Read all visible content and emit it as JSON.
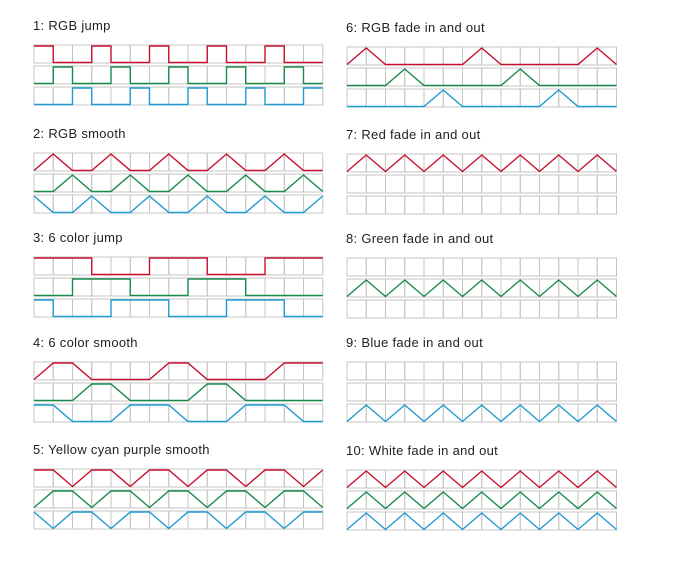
{
  "colors": {
    "red": "#c8102e",
    "green": "#198a4a",
    "blue": "#1f9bd1",
    "grid": "#c4c4c4"
  },
  "modes": [
    {
      "title": "1: RGB jump",
      "cells": 15,
      "rows": [
        {
          "color": "red",
          "shape": "square",
          "levels": [
            1,
            0,
            0,
            1,
            0,
            0,
            1,
            0,
            0,
            1,
            0,
            0,
            1,
            0,
            0
          ]
        },
        {
          "color": "green",
          "shape": "square",
          "levels": [
            0,
            1,
            0,
            0,
            1,
            0,
            0,
            1,
            0,
            0,
            1,
            0,
            0,
            1,
            0
          ]
        },
        {
          "color": "blue",
          "shape": "square",
          "levels": [
            0,
            0,
            1,
            0,
            0,
            1,
            0,
            0,
            1,
            0,
            0,
            1,
            0,
            0,
            1
          ]
        }
      ]
    },
    {
      "title": "2: RGB smooth",
      "cells": 15,
      "rows": [
        {
          "color": "red",
          "shape": "linear",
          "levels": [
            0,
            1,
            0,
            0,
            1,
            0,
            0,
            1,
            0,
            0,
            1,
            0,
            0,
            1,
            0,
            0
          ]
        },
        {
          "color": "green",
          "shape": "linear",
          "levels": [
            0,
            0,
            1,
            0,
            0,
            1,
            0,
            0,
            1,
            0,
            0,
            1,
            0,
            0,
            1,
            0
          ]
        },
        {
          "color": "blue",
          "shape": "linear",
          "levels": [
            1,
            0,
            0,
            1,
            0,
            0,
            1,
            0,
            0,
            1,
            0,
            0,
            1,
            0,
            0,
            1
          ]
        }
      ]
    },
    {
      "title": "3: 6 color jump",
      "cells": 15,
      "rows": [
        {
          "color": "red",
          "shape": "square",
          "levels": [
            1,
            1,
            1,
            0,
            0,
            0,
            1,
            1,
            1,
            0,
            0,
            0,
            1,
            1,
            1
          ]
        },
        {
          "color": "green",
          "shape": "square",
          "levels": [
            0,
            0,
            1,
            1,
            1,
            0,
            0,
            0,
            1,
            1,
            1,
            0,
            0,
            0,
            0
          ]
        },
        {
          "color": "blue",
          "shape": "square",
          "levels": [
            1,
            0,
            0,
            0,
            1,
            1,
            1,
            0,
            0,
            0,
            1,
            1,
            1,
            0,
            0
          ]
        }
      ]
    },
    {
      "title": "4: 6 color smooth",
      "cells": 15,
      "rows": [
        {
          "color": "red",
          "shape": "linear",
          "levels": [
            0,
            1,
            1,
            0,
            0,
            0,
            0,
            1,
            1,
            0,
            0,
            0,
            0,
            1,
            1,
            1
          ]
        },
        {
          "color": "green",
          "shape": "linear",
          "levels": [
            0,
            0,
            0,
            1,
            1,
            0,
            0,
            0,
            0,
            1,
            1,
            0,
            0,
            0,
            0,
            0
          ]
        },
        {
          "color": "blue",
          "shape": "linear",
          "levels": [
            1,
            1,
            0,
            0,
            0,
            1,
            1,
            1,
            0,
            0,
            0,
            1,
            1,
            1,
            0,
            0
          ]
        }
      ]
    },
    {
      "title": "5: Yellow cyan purple smooth",
      "cells": 15,
      "rows": [
        {
          "color": "red",
          "shape": "linear",
          "levels": [
            1,
            1,
            0,
            1,
            1,
            0,
            1,
            1,
            0,
            1,
            1,
            0,
            1,
            1,
            0,
            1
          ]
        },
        {
          "color": "green",
          "shape": "linear",
          "levels": [
            0,
            1,
            1,
            0,
            1,
            1,
            0,
            1,
            1,
            0,
            1,
            1,
            0,
            1,
            1,
            0
          ]
        },
        {
          "color": "blue",
          "shape": "linear",
          "levels": [
            1,
            0,
            1,
            1,
            0,
            1,
            1,
            0,
            1,
            1,
            0,
            1,
            1,
            0,
            1,
            1
          ]
        }
      ]
    },
    {
      "title": "6: RGB fade in and out",
      "cells": 14,
      "rows": [
        {
          "color": "red",
          "shape": "linear",
          "levels": [
            0,
            1,
            0,
            0,
            0,
            0,
            0,
            1,
            0,
            0,
            0,
            0,
            0,
            1,
            0
          ]
        },
        {
          "color": "green",
          "shape": "linear",
          "levels": [
            0,
            0,
            0,
            1,
            0,
            0,
            0,
            0,
            0,
            1,
            0,
            0,
            0,
            0,
            0
          ]
        },
        {
          "color": "blue",
          "shape": "linear",
          "levels": [
            0,
            0,
            0,
            0,
            0,
            1,
            0,
            0,
            0,
            0,
            0,
            1,
            0,
            0,
            0
          ]
        }
      ]
    },
    {
      "title": "7: Red fade in and out",
      "cells": 14,
      "rows": [
        {
          "color": "red",
          "shape": "linear",
          "levels": [
            0,
            1,
            0,
            1,
            0,
            1,
            0,
            1,
            0,
            1,
            0,
            1,
            0,
            1,
            0
          ]
        },
        {
          "color": "green",
          "shape": "none",
          "levels": []
        },
        {
          "color": "blue",
          "shape": "none",
          "levels": []
        }
      ]
    },
    {
      "title": "8: Green fade in and out",
      "cells": 14,
      "rows": [
        {
          "color": "red",
          "shape": "none",
          "levels": []
        },
        {
          "color": "green",
          "shape": "linear",
          "levels": [
            0,
            1,
            0,
            1,
            0,
            1,
            0,
            1,
            0,
            1,
            0,
            1,
            0,
            1,
            0
          ]
        },
        {
          "color": "blue",
          "shape": "none",
          "levels": []
        }
      ]
    },
    {
      "title": "9: Blue fade in and out",
      "cells": 14,
      "rows": [
        {
          "color": "red",
          "shape": "none",
          "levels": []
        },
        {
          "color": "green",
          "shape": "none",
          "levels": []
        },
        {
          "color": "blue",
          "shape": "linear",
          "levels": [
            0,
            1,
            0,
            1,
            0,
            1,
            0,
            1,
            0,
            1,
            0,
            1,
            0,
            1,
            0
          ]
        }
      ]
    },
    {
      "title": "10: White fade in and out",
      "cells": 14,
      "rows": [
        {
          "color": "red",
          "shape": "linear",
          "levels": [
            0,
            1,
            0,
            1,
            0,
            1,
            0,
            1,
            0,
            1,
            0,
            1,
            0,
            1,
            0
          ]
        },
        {
          "color": "green",
          "shape": "linear",
          "levels": [
            0,
            1,
            0,
            1,
            0,
            1,
            0,
            1,
            0,
            1,
            0,
            1,
            0,
            1,
            0
          ]
        },
        {
          "color": "blue",
          "shape": "linear",
          "levels": [
            0,
            1,
            0,
            1,
            0,
            1,
            0,
            1,
            0,
            1,
            0,
            1,
            0,
            1,
            0
          ]
        }
      ]
    }
  ]
}
